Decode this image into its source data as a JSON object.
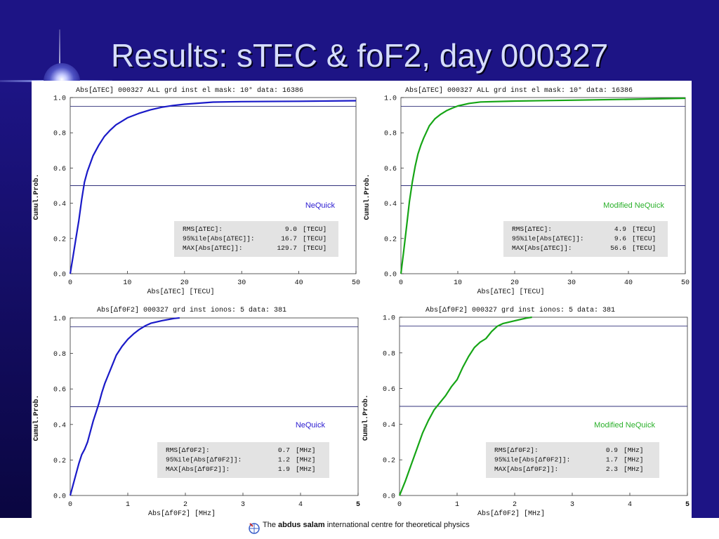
{
  "slide": {
    "title": "Results: sTEC & foF2, day 000327"
  },
  "footer": {
    "the": "The",
    "name": "abdus salam",
    "rest": "international centre for  theoretical  physics"
  },
  "colors": {
    "background": "#1d1485",
    "nequick": "#1a1ac8",
    "modified": "#16a516",
    "model_label_nequick": "#2a1ad0",
    "model_label_modified": "#2ab02a",
    "reference_line": "#30307a"
  },
  "chart_data": [
    {
      "type": "line",
      "header": "Abs[ΔTEC]  000327  ALL    grd inst    el mask: 10°    data: 16386",
      "xlabel": "Abs[ΔTEC]  [TECU]",
      "ylabel": "Cumul.Prob.",
      "xlim": [
        0,
        50
      ],
      "ylim": [
        0,
        1
      ],
      "xticks": [
        "0",
        "10",
        "20",
        "30",
        "40",
        "50"
      ],
      "yticks": [
        "0.0",
        "0.2",
        "0.4",
        "0.6",
        "0.8",
        "1.0"
      ],
      "hlines": [
        0.5,
        0.95
      ],
      "series": [
        {
          "name": "NeQuick",
          "x": [
            0,
            0.5,
            1,
            1.5,
            2,
            2.5,
            3,
            4,
            5,
            6,
            7,
            8,
            9,
            10,
            12,
            14,
            16,
            18,
            20,
            25,
            30,
            40,
            50
          ],
          "y": [
            0,
            0.1,
            0.2,
            0.3,
            0.42,
            0.52,
            0.58,
            0.67,
            0.73,
            0.78,
            0.815,
            0.845,
            0.865,
            0.885,
            0.91,
            0.93,
            0.945,
            0.955,
            0.962,
            0.974,
            0.977,
            0.979,
            0.982
          ]
        }
      ],
      "stats": [
        {
          "label": "RMS[ΔTEC]:",
          "value": "9.0",
          "unit": "[TECU]"
        },
        {
          "label": "95%ile[Abs[ΔTEC]]:",
          "value": "16.7",
          "unit": "[TECU]"
        },
        {
          "label": "MAX[Abs[ΔTEC]]:",
          "value": "129.7",
          "unit": "[TECU]"
        }
      ]
    },
    {
      "type": "line",
      "header": "Abs[ΔTEC]  000327  ALL    grd inst    el mask: 10°    data: 16386",
      "xlabel": "Abs[ΔTEC]  [TECU]",
      "ylabel": "Cumul.Prob.",
      "xlim": [
        0,
        50
      ],
      "ylim": [
        0,
        1
      ],
      "xticks": [
        "0",
        "10",
        "20",
        "30",
        "40",
        "50"
      ],
      "yticks": [
        "0.0",
        "0.2",
        "0.4",
        "0.6",
        "0.8",
        "1.0"
      ],
      "hlines": [
        0.5,
        0.95
      ],
      "series": [
        {
          "name": "Modified NeQuick",
          "x": [
            0,
            0.5,
            1,
            1.5,
            2,
            2.5,
            3,
            3.5,
            4,
            5,
            6,
            7,
            8,
            9,
            10,
            12,
            14,
            20,
            30,
            40,
            50
          ],
          "y": [
            0,
            0.13,
            0.27,
            0.41,
            0.52,
            0.61,
            0.68,
            0.73,
            0.77,
            0.84,
            0.88,
            0.905,
            0.925,
            0.94,
            0.952,
            0.967,
            0.975,
            0.98,
            0.985,
            0.99,
            0.996
          ]
        }
      ],
      "stats": [
        {
          "label": "RMS[ΔTEC]:",
          "value": "4.9",
          "unit": "[TECU]"
        },
        {
          "label": "95%ile[Abs[ΔTEC]]:",
          "value": "9.6",
          "unit": "[TECU]"
        },
        {
          "label": "MAX[Abs[ΔTEC]]:",
          "value": "56.6",
          "unit": "[TECU]"
        }
      ]
    },
    {
      "type": "line",
      "header": "Abs[Δf0F2]  000327    grd inst    ionos: 5    data: 381",
      "xlabel": "Abs[Δf0F2]  [MHz]",
      "ylabel": "Cumul.Prob.",
      "xlim": [
        0,
        5
      ],
      "ylim": [
        0,
        1
      ],
      "xticks": [
        "0",
        "1",
        "2",
        "3",
        "4",
        "5"
      ],
      "yticks": [
        "0.0",
        "0.2",
        "0.4",
        "0.6",
        "0.8",
        "1.0"
      ],
      "hlines": [
        0.5,
        0.95
      ],
      "series": [
        {
          "name": "NeQuick",
          "x": [
            0,
            0.05,
            0.1,
            0.15,
            0.2,
            0.25,
            0.3,
            0.35,
            0.4,
            0.45,
            0.5,
            0.55,
            0.6,
            0.65,
            0.7,
            0.75,
            0.8,
            0.9,
            1.0,
            1.1,
            1.2,
            1.3,
            1.4,
            1.6,
            1.8,
            1.9
          ],
          "y": [
            0,
            0.06,
            0.12,
            0.18,
            0.23,
            0.26,
            0.3,
            0.36,
            0.42,
            0.47,
            0.52,
            0.58,
            0.63,
            0.67,
            0.71,
            0.75,
            0.79,
            0.84,
            0.88,
            0.91,
            0.935,
            0.955,
            0.97,
            0.985,
            0.997,
            1.0
          ]
        }
      ],
      "stats": [
        {
          "label": "RMS[Δf0F2]:",
          "value": "0.7",
          "unit": "[MHz]"
        },
        {
          "label": "95%ile[Abs[Δf0F2]]:",
          "value": "1.2",
          "unit": "[MHz]"
        },
        {
          "label": "MAX[Abs[Δf0F2]]:",
          "value": "1.9",
          "unit": "[MHz]"
        }
      ]
    },
    {
      "type": "line",
      "header": "Abs[Δf0F2]  000327    grd inst    ionos: 5    data: 381",
      "xlabel": "Abs[Δf0F2]  [MHz]",
      "ylabel": "Cumul.Prob.",
      "xlim": [
        0,
        5
      ],
      "ylim": [
        0,
        1
      ],
      "xticks": [
        "0",
        "1",
        "2",
        "3",
        "4",
        "5"
      ],
      "yticks": [
        "0.0",
        "0.2",
        "0.4",
        "0.6",
        "0.8",
        "1.0"
      ],
      "hlines": [
        0.5,
        0.95
      ],
      "series": [
        {
          "name": "Modified NeQuick",
          "x": [
            0,
            0.1,
            0.2,
            0.3,
            0.4,
            0.5,
            0.6,
            0.7,
            0.8,
            0.9,
            1.0,
            1.1,
            1.2,
            1.3,
            1.4,
            1.5,
            1.6,
            1.7,
            1.8,
            2.0,
            2.2,
            2.3
          ],
          "y": [
            0,
            0.08,
            0.17,
            0.26,
            0.35,
            0.42,
            0.48,
            0.52,
            0.56,
            0.61,
            0.65,
            0.72,
            0.78,
            0.83,
            0.86,
            0.88,
            0.92,
            0.95,
            0.965,
            0.98,
            0.995,
            1.0
          ]
        }
      ],
      "stats": [
        {
          "label": "RMS[Δf0F2]:",
          "value": "0.9",
          "unit": "[MHz]"
        },
        {
          "label": "95%ile[Abs[Δf0F2]]:",
          "value": "1.7",
          "unit": "[MHz]"
        },
        {
          "label": "MAX[Abs[Δf0F2]]:",
          "value": "2.3",
          "unit": "[MHz]"
        }
      ]
    }
  ]
}
